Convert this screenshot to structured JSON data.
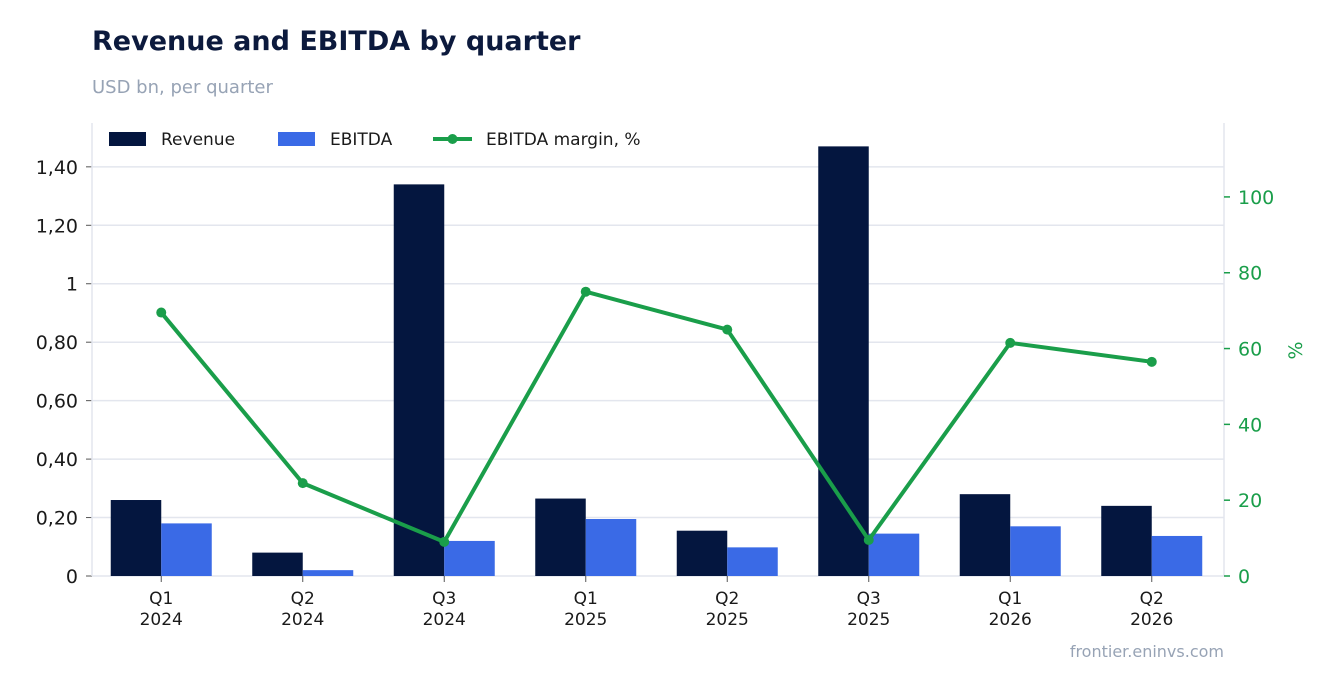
{
  "header": {
    "title": "Revenue and EBITDA by quarter",
    "subtitle": "USD bn, per quarter"
  },
  "footer": {
    "source": "frontier.eninvs.com"
  },
  "colors": {
    "revenue": "#04163f",
    "ebitda": "#3a6ae6",
    "margin": "#1a9e4a",
    "grid": "#e3e6ee",
    "axis_text": "#1a1a1a"
  },
  "chart_data": {
    "type": "bar",
    "title": "Revenue and EBITDA by quarter",
    "subtitle": "USD bn, per quarter",
    "categories": [
      [
        "Q1",
        "2024"
      ],
      [
        "Q2",
        "2024"
      ],
      [
        "Q3",
        "2024"
      ],
      [
        "Q1",
        "2025"
      ],
      [
        "Q2",
        "2025"
      ],
      [
        "Q3",
        "2025"
      ],
      [
        "Q1",
        "2026"
      ],
      [
        "Q2",
        "2026"
      ]
    ],
    "series": [
      {
        "name": "Revenue",
        "type": "bar",
        "axis": "left",
        "values": [
          0.26,
          0.08,
          1.34,
          0.265,
          0.155,
          1.47,
          0.28,
          0.24
        ]
      },
      {
        "name": "EBITDA",
        "type": "bar",
        "axis": "left",
        "values": [
          0.18,
          0.02,
          0.12,
          0.195,
          0.098,
          0.145,
          0.17,
          0.137
        ]
      },
      {
        "name": "EBITDA margin, %",
        "type": "line",
        "axis": "right",
        "values": [
          69.5,
          24.5,
          9,
          75,
          65,
          9.5,
          61.5,
          56.5
        ]
      }
    ],
    "y_left": {
      "range": [
        0,
        1.55
      ],
      "ticks": [
        0,
        0.2,
        0.4,
        0.6,
        0.8,
        1,
        1.2,
        1.4
      ],
      "tick_labels": [
        "0",
        "0,20",
        "0,40",
        "0,60",
        "0,80",
        "1",
        "1,20",
        "1,40"
      ]
    },
    "y_right": {
      "label": "%",
      "range": [
        0,
        119.5
      ],
      "ticks": [
        0,
        20,
        40,
        60,
        80,
        100
      ],
      "tick_labels": [
        "0",
        "20",
        "40",
        "60",
        "80",
        "100"
      ]
    },
    "legend": {
      "position": "top-left",
      "entries": [
        "Revenue",
        "EBITDA",
        "EBITDA margin, %"
      ]
    },
    "grid": "horizontal"
  }
}
